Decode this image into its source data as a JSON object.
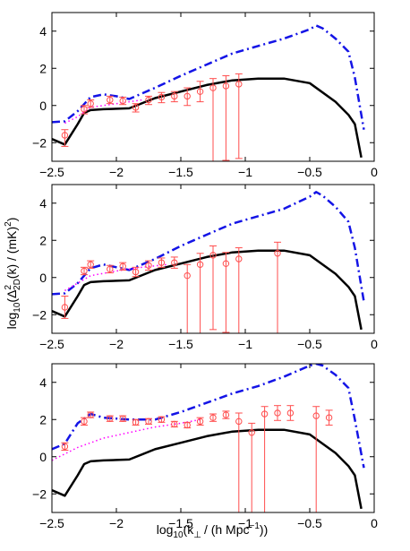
{
  "figure": {
    "ylabel_parts": [
      "log",
      "10",
      "(Δ",
      "2",
      "2D",
      "(k) / (mK)",
      "2",
      ")"
    ],
    "xlabel_parts": [
      "log",
      "10",
      "(k",
      "⊥",
      "/ (h Mpc",
      "−1",
      "))"
    ]
  },
  "colors": {
    "solid": "#000000",
    "dashdot": "#1414e6",
    "dotted": "#ff00ff",
    "markers": "#ff4d4d"
  },
  "chart_data": [
    {
      "type": "line",
      "panel": "top",
      "xlim": [
        -2.5,
        0
      ],
      "ylim": [
        -3,
        5
      ],
      "xticks": [
        -2.5,
        -2,
        -1.5,
        -1,
        -0.5,
        0
      ],
      "yticks": [
        -2,
        0,
        2,
        4
      ],
      "xtick_labels": [
        "−2.5",
        "−2",
        "−1.5",
        "−1",
        "−0.5",
        "0"
      ],
      "ytick_labels": [
        "−2",
        "0",
        "2",
        "4"
      ],
      "series": [
        {
          "style": "solid",
          "x": [
            -2.5,
            -2.4,
            -2.3,
            -2.25,
            -2.2,
            -2.1,
            -1.9,
            -1.7,
            -1.5,
            -1.3,
            -1.1,
            -0.9,
            -0.7,
            -0.5,
            -0.3,
            -0.2,
            -0.15,
            -0.1
          ],
          "y": [
            -1.8,
            -2.1,
            -1.0,
            -0.4,
            -0.25,
            -0.2,
            -0.15,
            0.4,
            0.75,
            1.1,
            1.35,
            1.45,
            1.45,
            1.2,
            0.2,
            -0.5,
            -1.0,
            -2.8
          ]
        },
        {
          "style": "dashdot",
          "x": [
            -2.5,
            -2.4,
            -2.3,
            -2.2,
            -2.1,
            -2.0,
            -1.9,
            -1.7,
            -1.5,
            -1.3,
            -1.1,
            -0.9,
            -0.7,
            -0.5,
            -0.45,
            -0.4,
            -0.3,
            -0.2,
            -0.15,
            -0.08
          ],
          "y": [
            -0.9,
            -0.85,
            -0.3,
            0.45,
            0.6,
            0.5,
            0.35,
            0.95,
            1.6,
            2.2,
            2.8,
            3.2,
            3.6,
            4.1,
            4.3,
            4.15,
            3.6,
            2.9,
            1.5,
            -1.3
          ]
        },
        {
          "style": "dotted",
          "x": [
            -2.4,
            -2.3,
            -2.2,
            -2.0,
            -1.8
          ],
          "y": [
            -0.95,
            -0.6,
            -0.1,
            0.1,
            0.3
          ]
        },
        {
          "style": "markers",
          "x": [
            -2.4,
            -2.25,
            -2.2,
            -2.05,
            -1.95,
            -1.85,
            -1.75,
            -1.65,
            -1.55,
            -1.45,
            -1.35,
            -1.25,
            -1.15,
            -1.05
          ],
          "y": [
            -1.6,
            -0.2,
            0.1,
            0.3,
            0.25,
            -0.1,
            0.3,
            0.45,
            0.5,
            0.5,
            0.75,
            0.95,
            1.05,
            1.15
          ],
          "err_lo": [
            0.6,
            0.25,
            0.2,
            0.2,
            0.2,
            0.25,
            0.25,
            0.3,
            0.3,
            0.5,
            0.55,
            4.0,
            4.0,
            4.0
          ],
          "err_hi": [
            0.3,
            0.2,
            0.2,
            0.2,
            0.2,
            0.2,
            0.2,
            0.25,
            0.25,
            0.45,
            0.55,
            0.5,
            0.55,
            0.55
          ]
        }
      ]
    },
    {
      "type": "line",
      "panel": "middle",
      "xlim": [
        -2.5,
        0
      ],
      "ylim": [
        -3,
        5
      ],
      "xticks": [
        -2.5,
        -2,
        -1.5,
        -1,
        -0.5,
        0
      ],
      "yticks": [
        -2,
        0,
        2,
        4
      ],
      "xtick_labels": [
        "−2.5",
        "−2",
        "−1.5",
        "−1",
        "−0.5",
        "0"
      ],
      "ytick_labels": [
        "−2",
        "0",
        "2",
        "4"
      ],
      "series": [
        {
          "style": "solid",
          "x": [
            -2.5,
            -2.4,
            -2.3,
            -2.25,
            -2.2,
            -2.1,
            -1.9,
            -1.7,
            -1.5,
            -1.3,
            -1.1,
            -0.9,
            -0.7,
            -0.5,
            -0.3,
            -0.2,
            -0.15,
            -0.1
          ],
          "y": [
            -1.8,
            -2.1,
            -1.0,
            -0.4,
            -0.25,
            -0.2,
            -0.15,
            0.4,
            0.75,
            1.1,
            1.35,
            1.45,
            1.45,
            1.2,
            0.2,
            -0.5,
            -1.0,
            -2.8
          ]
        },
        {
          "style": "dashdot",
          "x": [
            -2.5,
            -2.4,
            -2.3,
            -2.2,
            -2.1,
            -2.0,
            -1.9,
            -1.7,
            -1.5,
            -1.3,
            -1.1,
            -0.9,
            -0.7,
            -0.5,
            -0.45,
            -0.4,
            -0.3,
            -0.2,
            -0.15,
            -0.08
          ],
          "y": [
            -0.9,
            -0.85,
            -0.3,
            0.5,
            0.7,
            0.55,
            0.4,
            1.0,
            1.7,
            2.3,
            2.9,
            3.3,
            3.7,
            4.35,
            4.6,
            4.4,
            3.8,
            3.0,
            1.6,
            -1.3
          ]
        },
        {
          "style": "dotted",
          "x": [
            -2.4,
            -2.3,
            -2.2,
            -2.0,
            -1.8,
            -1.6
          ],
          "y": [
            -0.7,
            -0.3,
            0.1,
            0.35,
            0.55,
            0.7
          ]
        },
        {
          "style": "markers",
          "x": [
            -2.4,
            -2.25,
            -2.2,
            -2.05,
            -1.95,
            -1.85,
            -1.75,
            -1.65,
            -1.55,
            -1.45,
            -1.35,
            -1.25,
            -1.15,
            -1.05,
            -0.75
          ],
          "y": [
            -1.6,
            0.35,
            0.7,
            0.45,
            0.6,
            0.3,
            0.65,
            0.8,
            0.8,
            0.1,
            0.7,
            1.2,
            0.75,
            1.0,
            1.3
          ],
          "err_lo": [
            0.6,
            0.2,
            0.2,
            0.2,
            0.2,
            0.25,
            0.25,
            0.25,
            0.3,
            3.5,
            3.8,
            4.0,
            3.7,
            4.0,
            4.3
          ],
          "err_hi": [
            0.6,
            0.2,
            0.2,
            0.2,
            0.2,
            0.25,
            0.25,
            0.25,
            0.3,
            0.6,
            0.6,
            0.5,
            0.6,
            0.6,
            0.6
          ]
        }
      ]
    },
    {
      "type": "line",
      "panel": "bottom",
      "xlim": [
        -2.5,
        0
      ],
      "ylim": [
        -3,
        5
      ],
      "xticks": [
        -2.5,
        -2,
        -1.5,
        -1,
        -0.5,
        0
      ],
      "yticks": [
        -2,
        0,
        2,
        4
      ],
      "xtick_labels": [
        "−2.5",
        "−2",
        "−1.5",
        "−1",
        "−0.5",
        "0"
      ],
      "ytick_labels": [
        "−2",
        "0",
        "2",
        "4"
      ],
      "series": [
        {
          "style": "solid",
          "x": [
            -2.5,
            -2.4,
            -2.3,
            -2.25,
            -2.2,
            -2.1,
            -1.9,
            -1.7,
            -1.5,
            -1.3,
            -1.1,
            -0.9,
            -0.7,
            -0.5,
            -0.3,
            -0.2,
            -0.15,
            -0.1
          ],
          "y": [
            -1.8,
            -2.1,
            -1.0,
            -0.4,
            -0.25,
            -0.2,
            -0.15,
            0.4,
            0.75,
            1.1,
            1.35,
            1.45,
            1.45,
            1.2,
            0.2,
            -0.5,
            -1.0,
            -2.8
          ]
        },
        {
          "style": "dashdot",
          "x": [
            -2.5,
            -2.4,
            -2.3,
            -2.2,
            -2.1,
            -2.0,
            -1.9,
            -1.7,
            -1.5,
            -1.3,
            -1.1,
            -0.9,
            -0.7,
            -0.5,
            -0.45,
            -0.4,
            -0.3,
            -0.2,
            -0.15,
            -0.08
          ],
          "y": [
            0.4,
            0.7,
            1.8,
            2.3,
            2.1,
            2.05,
            2.0,
            2.0,
            2.4,
            2.9,
            3.4,
            3.8,
            4.3,
            4.9,
            5.0,
            4.9,
            4.4,
            3.7,
            2.0,
            -0.6
          ]
        },
        {
          "style": "dotted",
          "x": [
            -2.5,
            -2.3,
            -2.1,
            -1.9,
            -1.7,
            -1.5,
            -1.35
          ],
          "y": [
            -0.2,
            0.5,
            1.0,
            1.3,
            1.6,
            1.8,
            2.0
          ]
        },
        {
          "style": "markers",
          "x": [
            -2.4,
            -2.25,
            -2.2,
            -2.05,
            -1.95,
            -1.85,
            -1.75,
            -1.65,
            -1.55,
            -1.45,
            -1.35,
            -1.25,
            -1.15,
            -1.05,
            -0.95,
            -0.85,
            -0.75,
            -0.65,
            -0.45,
            -0.35
          ],
          "y": [
            0.55,
            1.9,
            2.25,
            2.05,
            2.05,
            1.85,
            1.9,
            2.0,
            1.75,
            1.7,
            1.9,
            2.1,
            2.25,
            1.9,
            1.3,
            2.3,
            2.35,
            2.35,
            2.2,
            2.1
          ],
          "err_lo": [
            0.2,
            0.2,
            0.15,
            0.15,
            0.15,
            0.15,
            0.15,
            0.15,
            0.15,
            0.15,
            0.2,
            0.2,
            0.2,
            4.9,
            4.3,
            5.3,
            0.4,
            0.4,
            5.2,
            0.4
          ],
          "err_hi": [
            0.2,
            0.2,
            0.15,
            0.15,
            0.15,
            0.15,
            0.15,
            0.15,
            0.15,
            0.15,
            0.2,
            0.2,
            0.2,
            0.45,
            0.5,
            0.4,
            0.4,
            0.4,
            0.5,
            0.4
          ]
        }
      ]
    }
  ]
}
